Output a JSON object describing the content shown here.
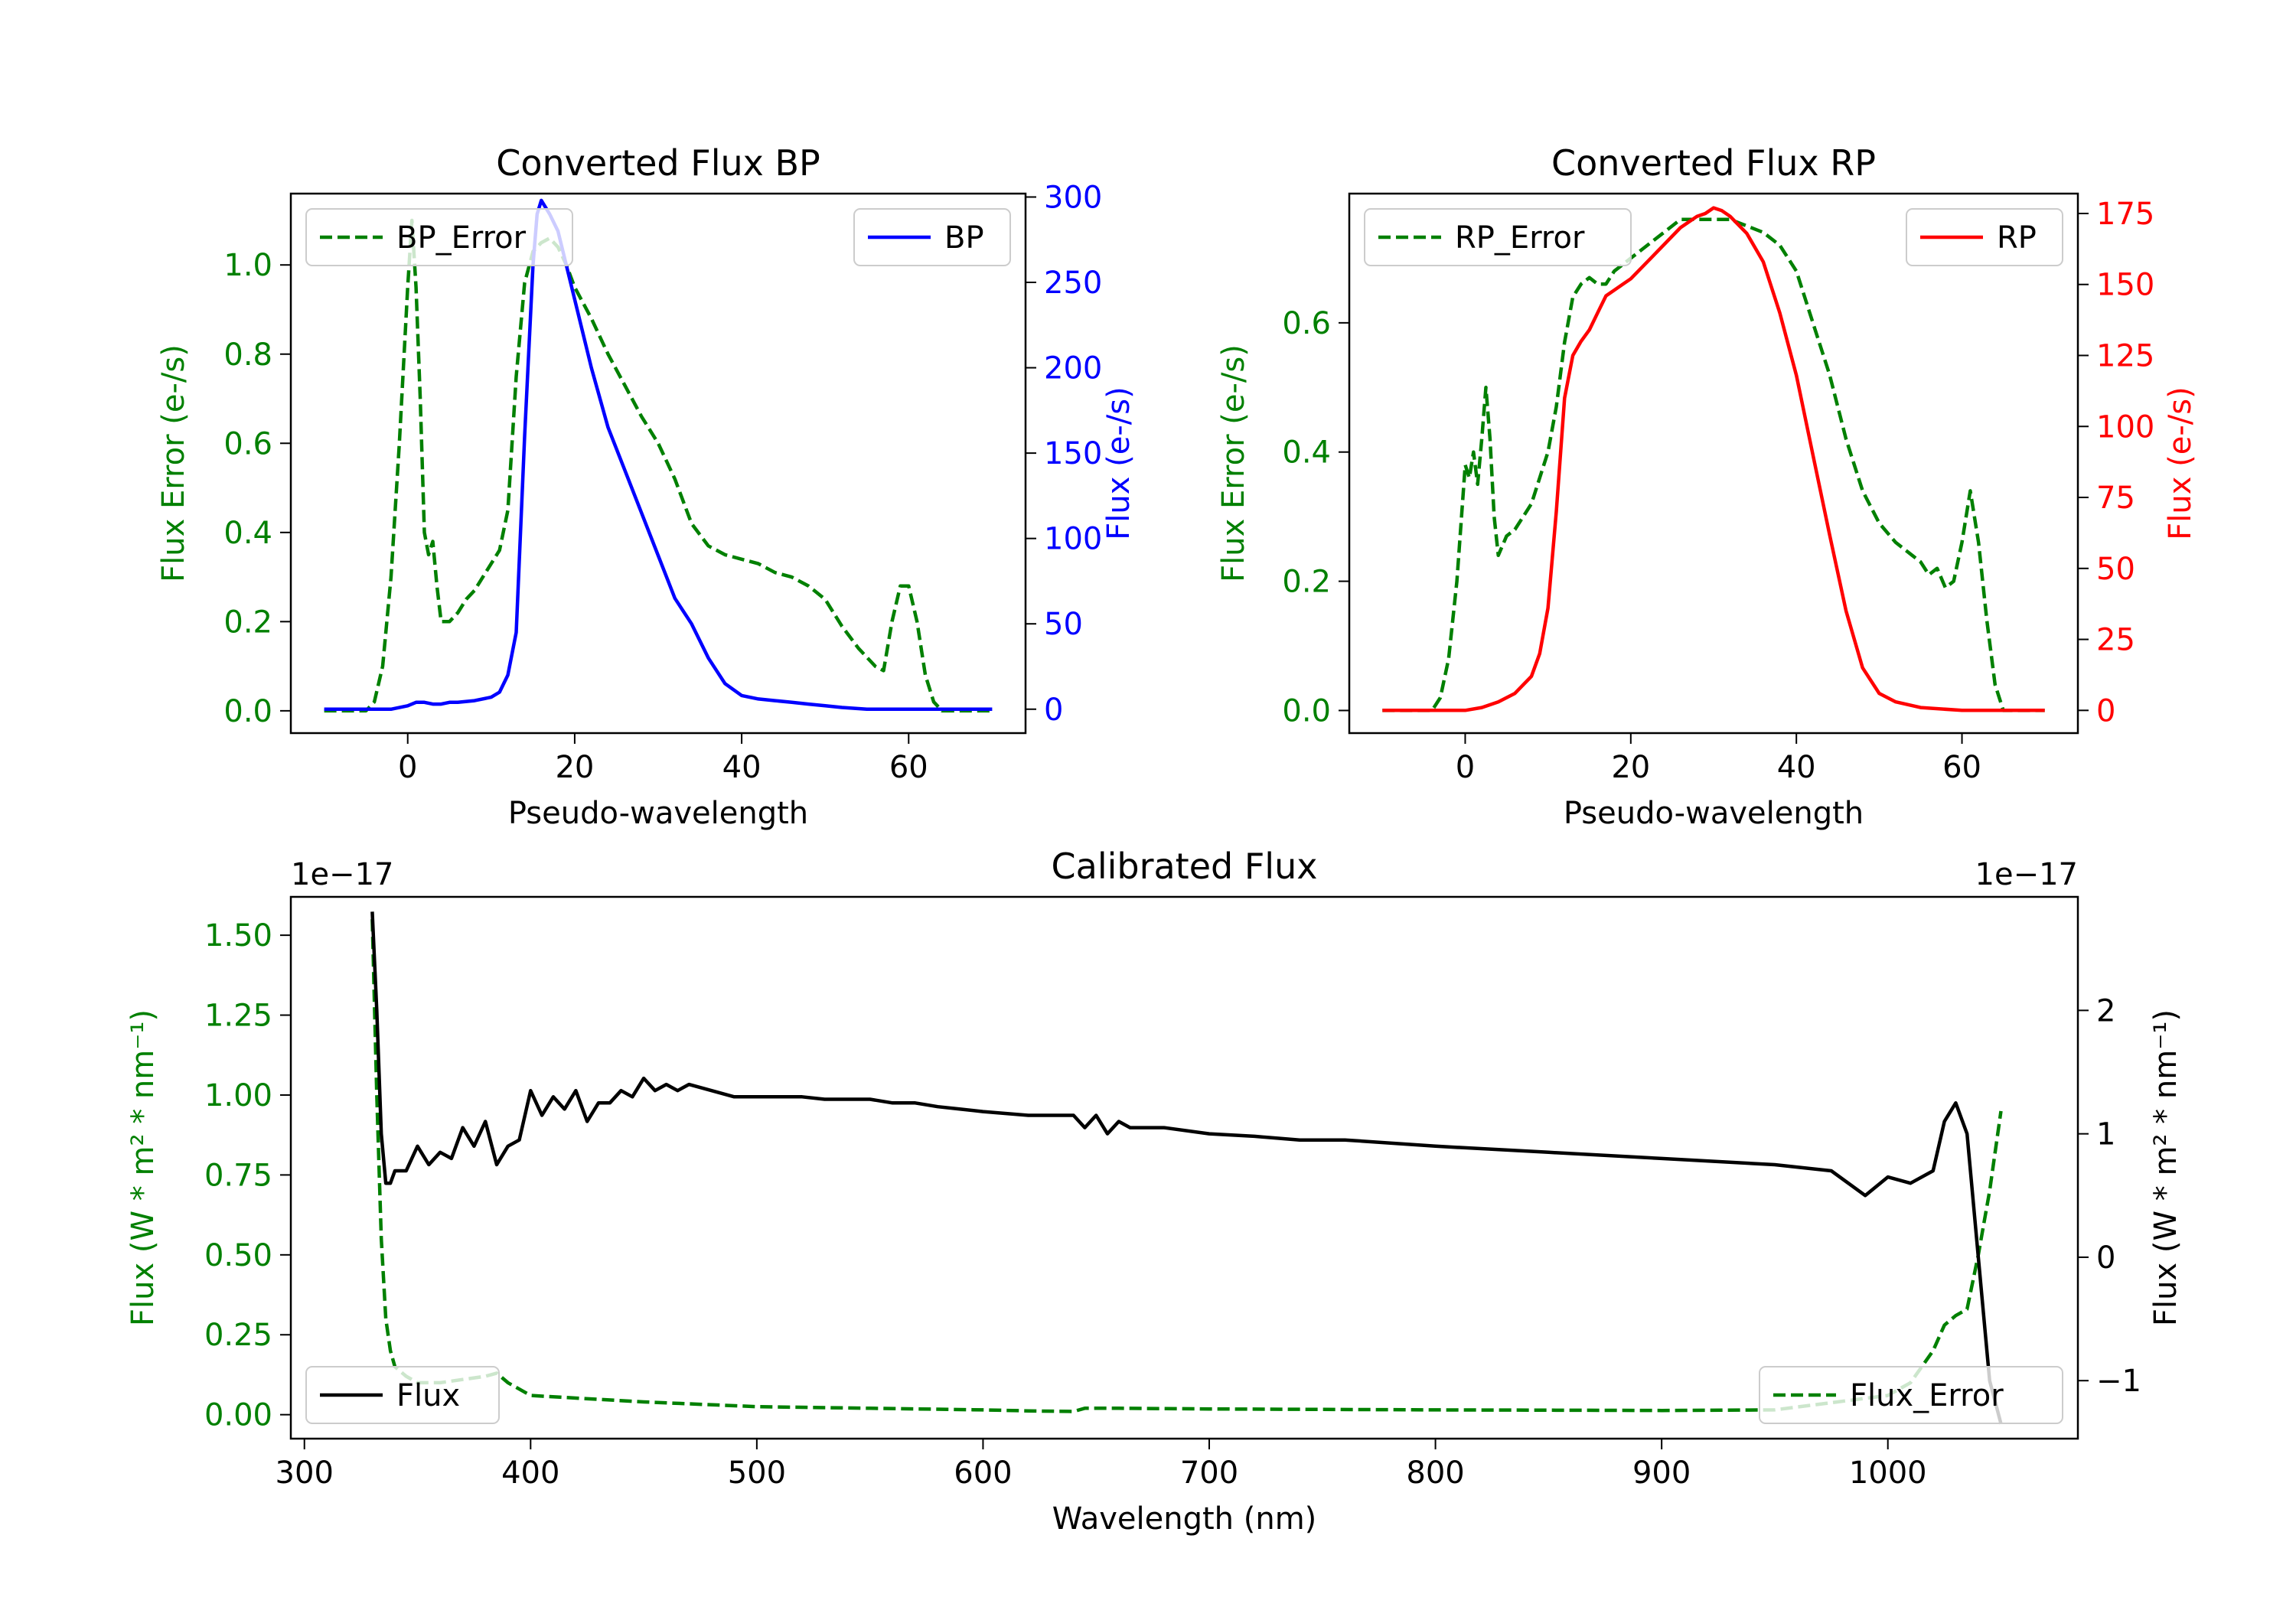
{
  "colors": {
    "error": "#008000",
    "bp": "#0000ff",
    "rp": "#ff0000",
    "flux": "#000000",
    "axis": "#000000"
  },
  "chart_data": [
    {
      "id": "bp",
      "type": "line",
      "title": "Converted Flux BP",
      "xlabel": "Pseudo-wavelength",
      "ylabel_left": "Flux Error (e-/s)",
      "ylabel_right": "Flux (e-/s)",
      "xlim": [
        -14,
        74
      ],
      "ylim_left": [
        -0.05,
        1.16
      ],
      "ylim_right": [
        -14,
        302
      ],
      "xticks": [
        0,
        20,
        40,
        60
      ],
      "yticks_left": [
        0.0,
        0.2,
        0.4,
        0.6,
        0.8,
        1.0
      ],
      "yticks_left_labels": [
        "0.0",
        "0.2",
        "0.4",
        "0.6",
        "0.8",
        "1.0"
      ],
      "yticks_right": [
        0,
        50,
        100,
        150,
        200,
        250,
        300
      ],
      "yticks_right_labels": [
        "0",
        "50",
        "100",
        "150",
        "200",
        "250",
        "300"
      ],
      "legend_left": {
        "label": "BP_Error",
        "placement": "upper-left"
      },
      "legend_right": {
        "label": "BP",
        "placement": "upper-right"
      },
      "series": [
        {
          "name": "BP_Error",
          "axis": "left",
          "style": "dashed",
          "x": [
            -10,
            -5,
            -4,
            -3,
            -2,
            -1,
            0,
            0.5,
            1,
            1.5,
            2,
            2.5,
            3,
            3.5,
            4,
            4.5,
            5,
            6,
            7,
            8,
            9,
            10,
            11,
            12,
            13,
            14,
            15,
            16,
            17,
            18,
            19,
            20,
            22,
            24,
            26,
            28,
            30,
            32,
            34,
            36,
            38,
            40,
            42,
            44,
            46,
            48,
            50,
            52,
            54,
            56,
            57,
            58,
            59,
            60,
            61,
            62,
            63,
            64,
            66,
            70
          ],
          "y": [
            0,
            0,
            0.02,
            0.1,
            0.3,
            0.6,
            0.95,
            1.1,
            0.95,
            0.7,
            0.4,
            0.35,
            0.38,
            0.28,
            0.2,
            0.2,
            0.2,
            0.22,
            0.25,
            0.27,
            0.3,
            0.33,
            0.36,
            0.45,
            0.75,
            0.96,
            1.03,
            1.05,
            1.06,
            1.04,
            1.0,
            0.95,
            0.88,
            0.8,
            0.73,
            0.66,
            0.6,
            0.52,
            0.42,
            0.37,
            0.35,
            0.34,
            0.33,
            0.31,
            0.3,
            0.28,
            0.25,
            0.19,
            0.14,
            0.1,
            0.09,
            0.2,
            0.28,
            0.28,
            0.2,
            0.08,
            0.02,
            0,
            0,
            0
          ]
        },
        {
          "name": "BP",
          "axis": "right",
          "style": "solid",
          "x": [
            -10,
            -8,
            -6,
            -4,
            -2,
            0,
            1,
            2,
            3,
            4,
            5,
            6,
            8,
            10,
            11,
            12,
            13,
            14,
            15,
            15.5,
            16,
            17,
            18,
            19,
            20,
            22,
            24,
            26,
            28,
            30,
            32,
            34,
            36,
            38,
            40,
            42,
            44,
            46,
            48,
            50,
            52,
            55,
            60,
            65,
            70
          ],
          "y": [
            0,
            0,
            0,
            0,
            0,
            2,
            4,
            4,
            3,
            3,
            4,
            4,
            5,
            7,
            10,
            20,
            45,
            160,
            260,
            290,
            298,
            290,
            280,
            260,
            240,
            200,
            165,
            140,
            115,
            90,
            65,
            50,
            30,
            15,
            8,
            6,
            5,
            4,
            3,
            2,
            1,
            0,
            0,
            0,
            0
          ]
        }
      ]
    },
    {
      "id": "rp",
      "type": "line",
      "title": "Converted Flux RP",
      "xlabel": "Pseudo-wavelength",
      "ylabel_left": "Flux Error (e-/s)",
      "ylabel_right": "Flux (e-/s)",
      "xlim": [
        -14,
        74
      ],
      "ylim_left": [
        -0.035,
        0.8
      ],
      "ylim_right": [
        -8,
        182
      ],
      "xticks": [
        0,
        20,
        40,
        60
      ],
      "yticks_left": [
        0.0,
        0.2,
        0.4,
        0.6
      ],
      "yticks_left_labels": [
        "0.0",
        "0.2",
        "0.4",
        "0.6"
      ],
      "yticks_right": [
        0,
        25,
        50,
        75,
        100,
        125,
        150,
        175
      ],
      "yticks_right_labels": [
        "0",
        "25",
        "50",
        "75",
        "100",
        "125",
        "150",
        "175"
      ],
      "legend_left": {
        "label": "RP_Error",
        "placement": "upper-left"
      },
      "legend_right": {
        "label": "RP",
        "placement": "upper-right"
      },
      "series": [
        {
          "name": "RP_Error",
          "axis": "left",
          "style": "dashed",
          "x": [
            -10,
            -5,
            -4,
            -3,
            -2,
            -1,
            0,
            0.5,
            1,
            1.5,
            2,
            2.5,
            3,
            3.5,
            4,
            5,
            6,
            7,
            8,
            9,
            10,
            11,
            12,
            13,
            14,
            15,
            16,
            17,
            18,
            19,
            20,
            22,
            24,
            26,
            28,
            30,
            32,
            34,
            36,
            38,
            40,
            42,
            44,
            46,
            48,
            50,
            52,
            54,
            55,
            56,
            57,
            58,
            59,
            60,
            61,
            62,
            63,
            64,
            65,
            70
          ],
          "y": [
            0,
            0,
            0,
            0.02,
            0.08,
            0.2,
            0.38,
            0.36,
            0.4,
            0.35,
            0.42,
            0.5,
            0.42,
            0.3,
            0.24,
            0.27,
            0.28,
            0.3,
            0.32,
            0.36,
            0.4,
            0.47,
            0.57,
            0.64,
            0.66,
            0.67,
            0.66,
            0.66,
            0.68,
            0.69,
            0.7,
            0.72,
            0.74,
            0.76,
            0.76,
            0.76,
            0.76,
            0.75,
            0.74,
            0.72,
            0.68,
            0.6,
            0.52,
            0.42,
            0.34,
            0.29,
            0.26,
            0.24,
            0.23,
            0.21,
            0.22,
            0.19,
            0.2,
            0.26,
            0.34,
            0.26,
            0.14,
            0.04,
            0,
            0
          ]
        },
        {
          "name": "RP",
          "axis": "right",
          "style": "solid",
          "x": [
            -10,
            -5,
            0,
            2,
            4,
            6,
            8,
            9,
            10,
            11,
            12,
            13,
            14,
            15,
            16,
            17,
            18,
            19,
            20,
            22,
            24,
            26,
            28,
            29,
            30,
            31,
            32,
            34,
            36,
            38,
            40,
            42,
            44,
            46,
            48,
            50,
            52,
            55,
            60,
            65,
            70
          ],
          "y": [
            0,
            0,
            0,
            1,
            3,
            6,
            12,
            20,
            36,
            70,
            110,
            125,
            130,
            134,
            140,
            146,
            148,
            150,
            152,
            158,
            164,
            170,
            174,
            175,
            177,
            176,
            174,
            168,
            158,
            140,
            118,
            90,
            62,
            35,
            15,
            6,
            3,
            1,
            0,
            0,
            0
          ]
        }
      ]
    },
    {
      "id": "calibrated",
      "type": "line",
      "title": "Calibrated Flux",
      "xlabel": "Wavelength (nm)",
      "ylabel_left": "Flux (W * m² * nm⁻¹)",
      "ylabel_right": "Flux (W * m² * nm⁻¹)",
      "offset_left": "1e−17",
      "offset_right": "1e−17",
      "xlim": [
        294,
        1084
      ],
      "ylim_left": [
        -0.075,
        1.62
      ],
      "ylim_right": [
        -1.47,
        2.92
      ],
      "xticks": [
        300,
        400,
        500,
        600,
        700,
        800,
        900,
        1000
      ],
      "yticks_left": [
        0.0,
        0.25,
        0.5,
        0.75,
        1.0,
        1.25,
        1.5
      ],
      "yticks_left_labels": [
        "0.00",
        "0.25",
        "0.50",
        "0.75",
        "1.00",
        "1.25",
        "1.50"
      ],
      "yticks_right": [
        -1,
        0,
        1,
        2
      ],
      "yticks_right_labels": [
        "−1",
        "0",
        "1",
        "2"
      ],
      "legend_left": {
        "label": "Flux",
        "placement": "lower-left"
      },
      "legend_right": {
        "label": "Flux_Error",
        "placement": "lower-right"
      },
      "series": [
        {
          "name": "Flux_Error",
          "axis": "left",
          "style": "dashed",
          "x": [
            330,
            332,
            334,
            336,
            338,
            340,
            345,
            350,
            360,
            370,
            380,
            385,
            390,
            400,
            450,
            500,
            550,
            600,
            620,
            640,
            645,
            660,
            700,
            800,
            900,
            950,
            1000,
            1010,
            1020,
            1025,
            1030,
            1035,
            1040,
            1045,
            1050
          ],
          "y": [
            1.55,
            1.0,
            0.55,
            0.3,
            0.2,
            0.15,
            0.12,
            0.1,
            0.1,
            0.11,
            0.12,
            0.13,
            0.1,
            0.06,
            0.04,
            0.025,
            0.02,
            0.015,
            0.012,
            0.01,
            0.02,
            0.02,
            0.018,
            0.015,
            0.013,
            0.015,
            0.06,
            0.1,
            0.2,
            0.28,
            0.31,
            0.33,
            0.5,
            0.7,
            0.95
          ]
        },
        {
          "name": "Flux",
          "axis": "right",
          "style": "solid",
          "x": [
            330,
            332,
            334,
            336,
            338,
            340,
            345,
            350,
            355,
            360,
            365,
            370,
            375,
            380,
            385,
            390,
            395,
            400,
            405,
            410,
            415,
            420,
            425,
            430,
            435,
            440,
            445,
            450,
            455,
            460,
            465,
            470,
            480,
            490,
            500,
            510,
            520,
            530,
            540,
            550,
            560,
            570,
            580,
            590,
            600,
            620,
            640,
            645,
            650,
            655,
            660,
            665,
            670,
            680,
            700,
            720,
            740,
            760,
            800,
            850,
            900,
            950,
            975,
            990,
            1000,
            1010,
            1020,
            1025,
            1030,
            1035,
            1040,
            1045,
            1050
          ],
          "y": [
            2.8,
            2.0,
            1.0,
            0.6,
            0.6,
            0.7,
            0.7,
            0.9,
            0.75,
            0.85,
            0.8,
            1.05,
            0.9,
            1.1,
            0.75,
            0.9,
            0.95,
            1.35,
            1.15,
            1.3,
            1.2,
            1.35,
            1.1,
            1.25,
            1.25,
            1.35,
            1.3,
            1.45,
            1.35,
            1.4,
            1.35,
            1.4,
            1.35,
            1.3,
            1.3,
            1.3,
            1.3,
            1.28,
            1.28,
            1.28,
            1.25,
            1.25,
            1.22,
            1.2,
            1.18,
            1.15,
            1.15,
            1.05,
            1.15,
            1.0,
            1.1,
            1.05,
            1.05,
            1.05,
            1.0,
            0.98,
            0.95,
            0.95,
            0.9,
            0.85,
            0.8,
            0.75,
            0.7,
            0.5,
            0.65,
            0.6,
            0.7,
            1.1,
            1.25,
            1.0,
            0.0,
            -1.0,
            -1.35
          ]
        }
      ]
    }
  ]
}
